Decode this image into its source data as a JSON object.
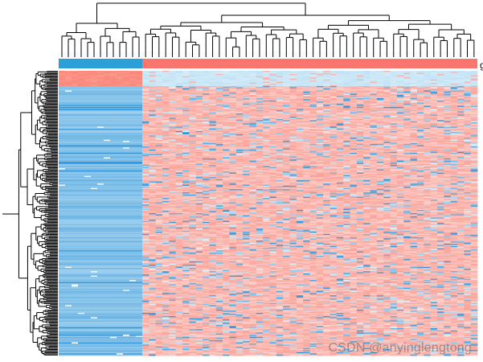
{
  "chart_data": {
    "type": "heatmap",
    "title": "",
    "xlabel": "",
    "ylabel": "",
    "row_dendrogram": true,
    "column_dendrogram": true,
    "column_annotation": {
      "label": "g",
      "groups": [
        {
          "name": "",
          "color": "#2a9fd8",
          "n_columns": 13
        },
        {
          "name": "",
          "color": "#f8766d",
          "n_columns": 50
        }
      ]
    },
    "color_scale": {
      "low": "#2f95d9",
      "mid": "#fbe3e0",
      "high": "#fa8072"
    },
    "n_rows": 260,
    "n_columns": 63,
    "pattern": "Group 1 columns mostly low (blue); a small top block of rows is high (red) in group 1 and low in group 2; group 2 mostly high with scattered low cells"
  },
  "watermark": "CSDN @anyinglengtong",
  "colors": {
    "dendrogram": "#000000",
    "background": "#ffffff"
  }
}
